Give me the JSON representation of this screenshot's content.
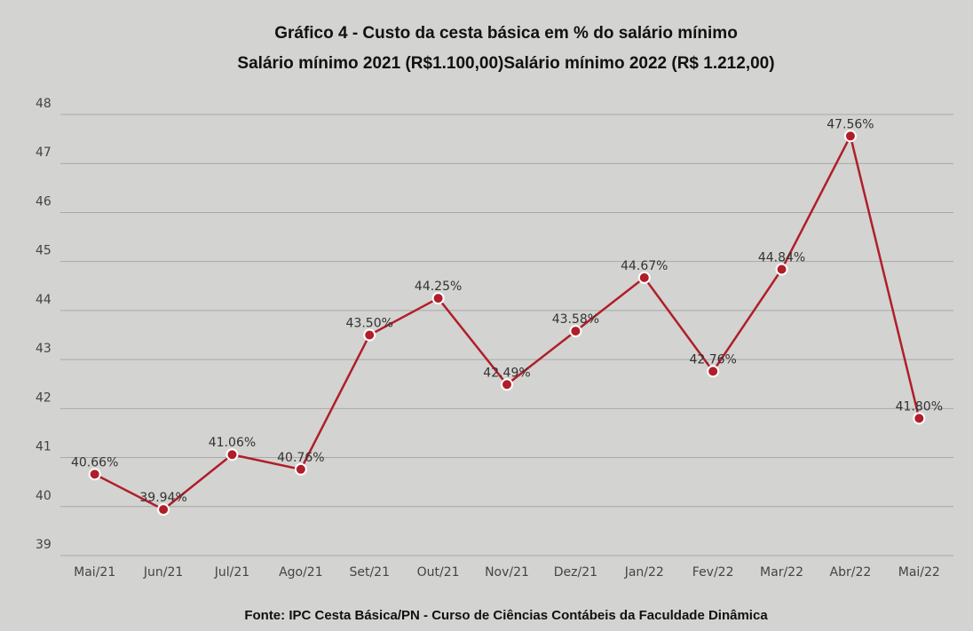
{
  "chart_data": {
    "type": "line",
    "title": "Gráfico 4 - Custo da cesta básica em % do salário mínimo",
    "subtitle": "Salário mínimo 2021 (R$1.100,00)Salário mínimo 2022 (R$ 1.212,00)",
    "source": "Fonte: IPC Cesta Básica/PN - Curso de Ciências Contábeis da Faculdade Dinâmica",
    "categories": [
      "Mai/21",
      "Jun/21",
      "Jul/21",
      "Ago/21",
      "Set/21",
      "Out/21",
      "Nov/21",
      "Dez/21",
      "Jan/22",
      "Fev/22",
      "Mar/22",
      "Abr/22",
      "Mai/22"
    ],
    "values": [
      40.66,
      39.94,
      41.06,
      40.76,
      43.5,
      44.25,
      42.49,
      43.58,
      44.67,
      42.76,
      44.84,
      47.56,
      41.8
    ],
    "value_labels": [
      "40.66%",
      "39.94%",
      "41.06%",
      "40.76%",
      "43.50%",
      "44.25%",
      "42.49%",
      "43.58%",
      "44.67%",
      "42.76%",
      "44.84%",
      "47.56%",
      "41.80%"
    ],
    "color": "#b01e2a",
    "ylim": [
      39,
      48
    ],
    "yticks": [
      39,
      40,
      41,
      42,
      43,
      44,
      45,
      46,
      47,
      48
    ],
    "grid": true
  }
}
